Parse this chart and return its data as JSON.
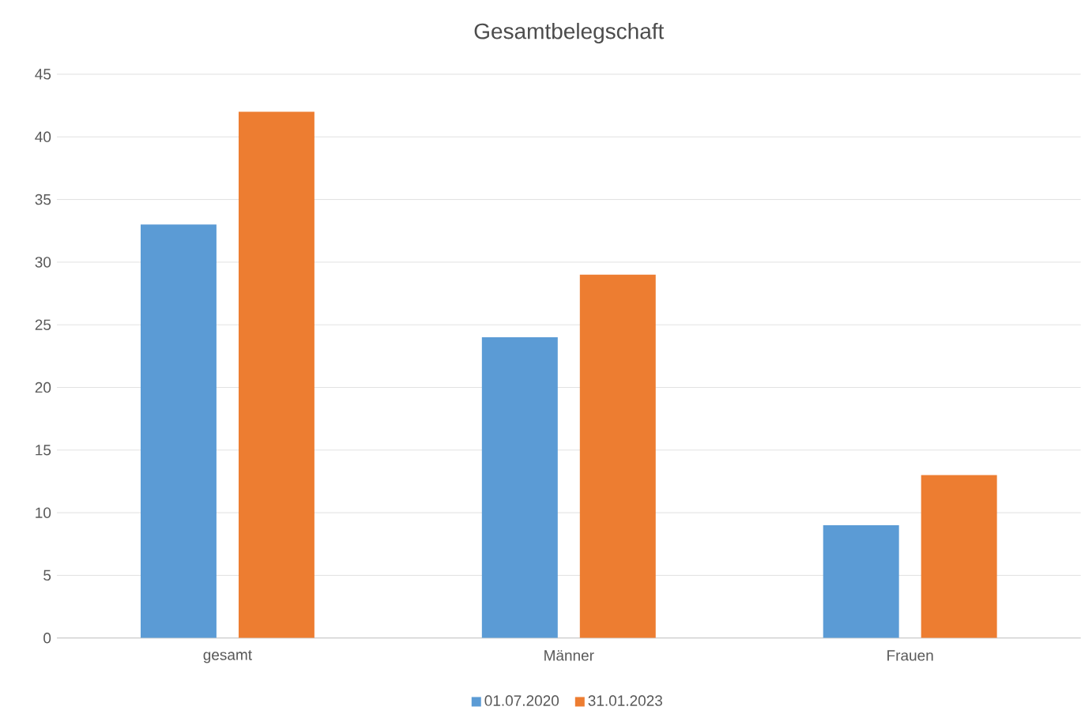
{
  "chart_data": {
    "type": "bar",
    "title": "Gesamtbelegschaft",
    "categories": [
      "gesamt",
      "Männer",
      "Frauen"
    ],
    "series": [
      {
        "name": "01.07.2020",
        "color": "#5b9bd5",
        "values": [
          33,
          24,
          9
        ]
      },
      {
        "name": "31.01.2023",
        "color": "#ed7d31",
        "values": [
          42,
          29,
          13
        ]
      }
    ],
    "ylim": [
      0,
      45
    ],
    "yticks": [
      0,
      5,
      10,
      15,
      20,
      25,
      30,
      35,
      40,
      45
    ],
    "grid": "y",
    "legend": "bottom"
  }
}
